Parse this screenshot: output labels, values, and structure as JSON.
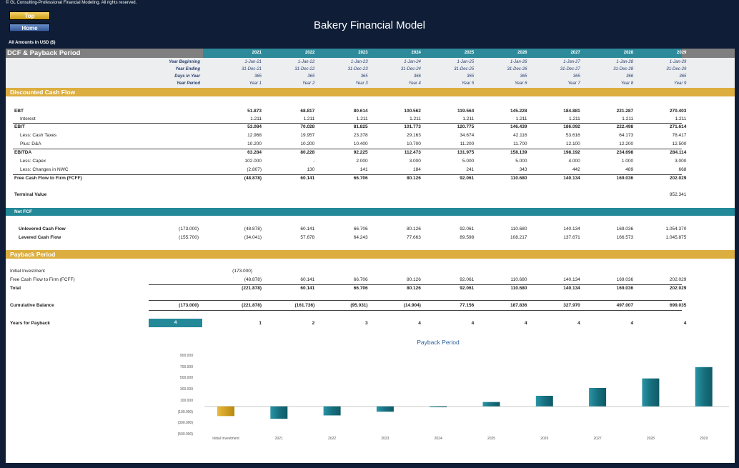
{
  "copyright": "© GL Consulting-Professional Financial Modeling. All rights reserved.",
  "nav": {
    "top_label": "Top",
    "home_label": "Home"
  },
  "title": "Bakery Financial Model",
  "currency_note": "All Amounts in  USD ($)",
  "section_title": "DCF & Payback Period",
  "years": [
    "2021",
    "2022",
    "2023",
    "2024",
    "2025",
    "2026",
    "2027",
    "2028",
    "2029"
  ],
  "meta": {
    "year_beginning_label": "Year Beginning",
    "year_ending_label": "Year Ending",
    "days_label": "Days in Year",
    "period_label": "Year Period",
    "year_beginning": [
      "1-Jan-21",
      "1-Jan-22",
      "1-Jan-23",
      "1-Jan-24",
      "1-Jan-25",
      "1-Jan-26",
      "1-Jan-27",
      "1-Jan-28",
      "1-Jan-29"
    ],
    "year_ending": [
      "31-Dec-21",
      "31-Dec-22",
      "31-Dec-23",
      "31-Dec-24",
      "31-Dec-25",
      "31-Dec-26",
      "31-Dec-27",
      "31-Dec-28",
      "31-Dec-29"
    ],
    "days": [
      "365",
      "365",
      "365",
      "366",
      "365",
      "365",
      "365",
      "366",
      "365"
    ],
    "period": [
      "Year 1",
      "Year 2",
      "Year 3",
      "Year 4",
      "Year 5",
      "Year 6",
      "Year 7",
      "Year 8",
      "Year 9"
    ]
  },
  "dcf": {
    "title": "Discounted Cash Flow",
    "rows": [
      {
        "label": "EBT",
        "bold": true,
        "indent": 0,
        "values": [
          "51.873",
          "68.817",
          "80.614",
          "100.562",
          "119.564",
          "145.228",
          "184.881",
          "221.287",
          "270.403"
        ]
      },
      {
        "label": "Interest",
        "bold": false,
        "indent": 1,
        "values": [
          "1.211",
          "1.211",
          "1.211",
          "1.211",
          "1.211",
          "1.211",
          "1.211",
          "1.211",
          "1.211"
        ]
      },
      {
        "label": "EBIT",
        "bold": true,
        "indent": 0,
        "values": [
          "53.084",
          "70.028",
          "81.825",
          "101.773",
          "120.775",
          "146.439",
          "186.092",
          "222.498",
          "271.614"
        ]
      },
      {
        "label": "Less: Cash Taxes",
        "bold": false,
        "indent": 1,
        "values": [
          "12.968",
          "19.957",
          "23.378",
          "29.163",
          "34.674",
          "42.116",
          "53.616",
          "64.173",
          "78.417"
        ]
      },
      {
        "label": "Plus: D&A",
        "bold": false,
        "indent": 1,
        "values": [
          "10.200",
          "10.200",
          "10.400",
          "10.700",
          "11.200",
          "11.700",
          "12.100",
          "12.200",
          "12.500"
        ]
      },
      {
        "label": "EBITDA",
        "bold": true,
        "indent": 0,
        "values": [
          "63.284",
          "80.228",
          "92.225",
          "112.473",
          "131.975",
          "158.139",
          "198.192",
          "234.698",
          "284.114"
        ]
      },
      {
        "label": "Less: Capex",
        "bold": false,
        "indent": 1,
        "values": [
          "102.000",
          "-",
          "2.000",
          "3.000",
          "5.000",
          "5.000",
          "4.000",
          "1.000",
          "3.000"
        ]
      },
      {
        "label": "Less: Changes in NWC",
        "bold": false,
        "indent": 1,
        "values": [
          "(2.807)",
          "130",
          "141",
          "184",
          "241",
          "343",
          "442",
          "489",
          "668"
        ]
      },
      {
        "label": "Free Cash Flow to Firm (FCFF)",
        "bold": true,
        "indent": 0,
        "values": [
          "(48.878)",
          "60.141",
          "66.706",
          "80.126",
          "92.061",
          "110.680",
          "140.134",
          "169.036",
          "202.029"
        ]
      }
    ],
    "terminal_label": "Terminal Value",
    "terminal_value": "852.341"
  },
  "net_fcf": {
    "title": "Net FCF",
    "rows": [
      {
        "label": "Unlevered Cash Flow",
        "initial": "(173.000)",
        "values": [
          "(48.878)",
          "60.141",
          "66.706",
          "80.126",
          "92.061",
          "110.680",
          "140.134",
          "169.036",
          "1.054.370"
        ]
      },
      {
        "label": "Levered Cash Flow",
        "initial": "(155.700)",
        "values": [
          "(34.041)",
          "57.678",
          "64.243",
          "77.663",
          "89.598",
          "108.217",
          "137.671",
          "166.573",
          "1.045.875"
        ]
      }
    ]
  },
  "payback": {
    "title": "Payback Period",
    "initial_investment_label": "Initial Investment",
    "initial_investment_value": "(173.000)",
    "fcff_label": "Free Cash Flow to Firm (FCFF)",
    "fcff_values": [
      "(48.878)",
      "60.141",
      "66.706",
      "80.126",
      "92.061",
      "110.680",
      "140.134",
      "169.036",
      "202.029"
    ],
    "total_label": "Total",
    "total_values": [
      "(221.878)",
      "60.141",
      "66.706",
      "80.126",
      "92.061",
      "110.680",
      "140.134",
      "169.036",
      "202.029"
    ],
    "cumulative_label": "Cumulative Balance",
    "cumulative_initial": "(173.000)",
    "cumulative_values": [
      "(221.878)",
      "(161.736)",
      "(95.031)",
      "(14.904)",
      "77.156",
      "187.836",
      "327.970",
      "497.007",
      "699.035"
    ],
    "years_label": "Years for Payback",
    "years_result": "4",
    "years_values": [
      "1",
      "2",
      "3",
      "4",
      "4",
      "4",
      "4",
      "4",
      "4"
    ]
  },
  "chart_data": {
    "type": "bar",
    "title": "Payback Period",
    "categories": [
      "Initial Investment",
      "2021",
      "2022",
      "2023",
      "2024",
      "2025",
      "2026",
      "2027",
      "2028",
      "2029"
    ],
    "values": [
      -173.0,
      -221.878,
      -161.736,
      -95.031,
      -14.904,
      77.156,
      187.836,
      327.97,
      497.007,
      699.035
    ],
    "ylim": [
      -500,
      900
    ],
    "yticks": [
      "900.000",
      "700.000",
      "500.000",
      "300.000",
      "100.000",
      "(100.000)",
      "(300.000)",
      "(500.000)"
    ],
    "ytick_values": [
      900,
      700,
      500,
      300,
      100,
      -100,
      -300,
      -500
    ],
    "colors": {
      "initial": "#d9a624",
      "bars": "#1f8594"
    }
  }
}
